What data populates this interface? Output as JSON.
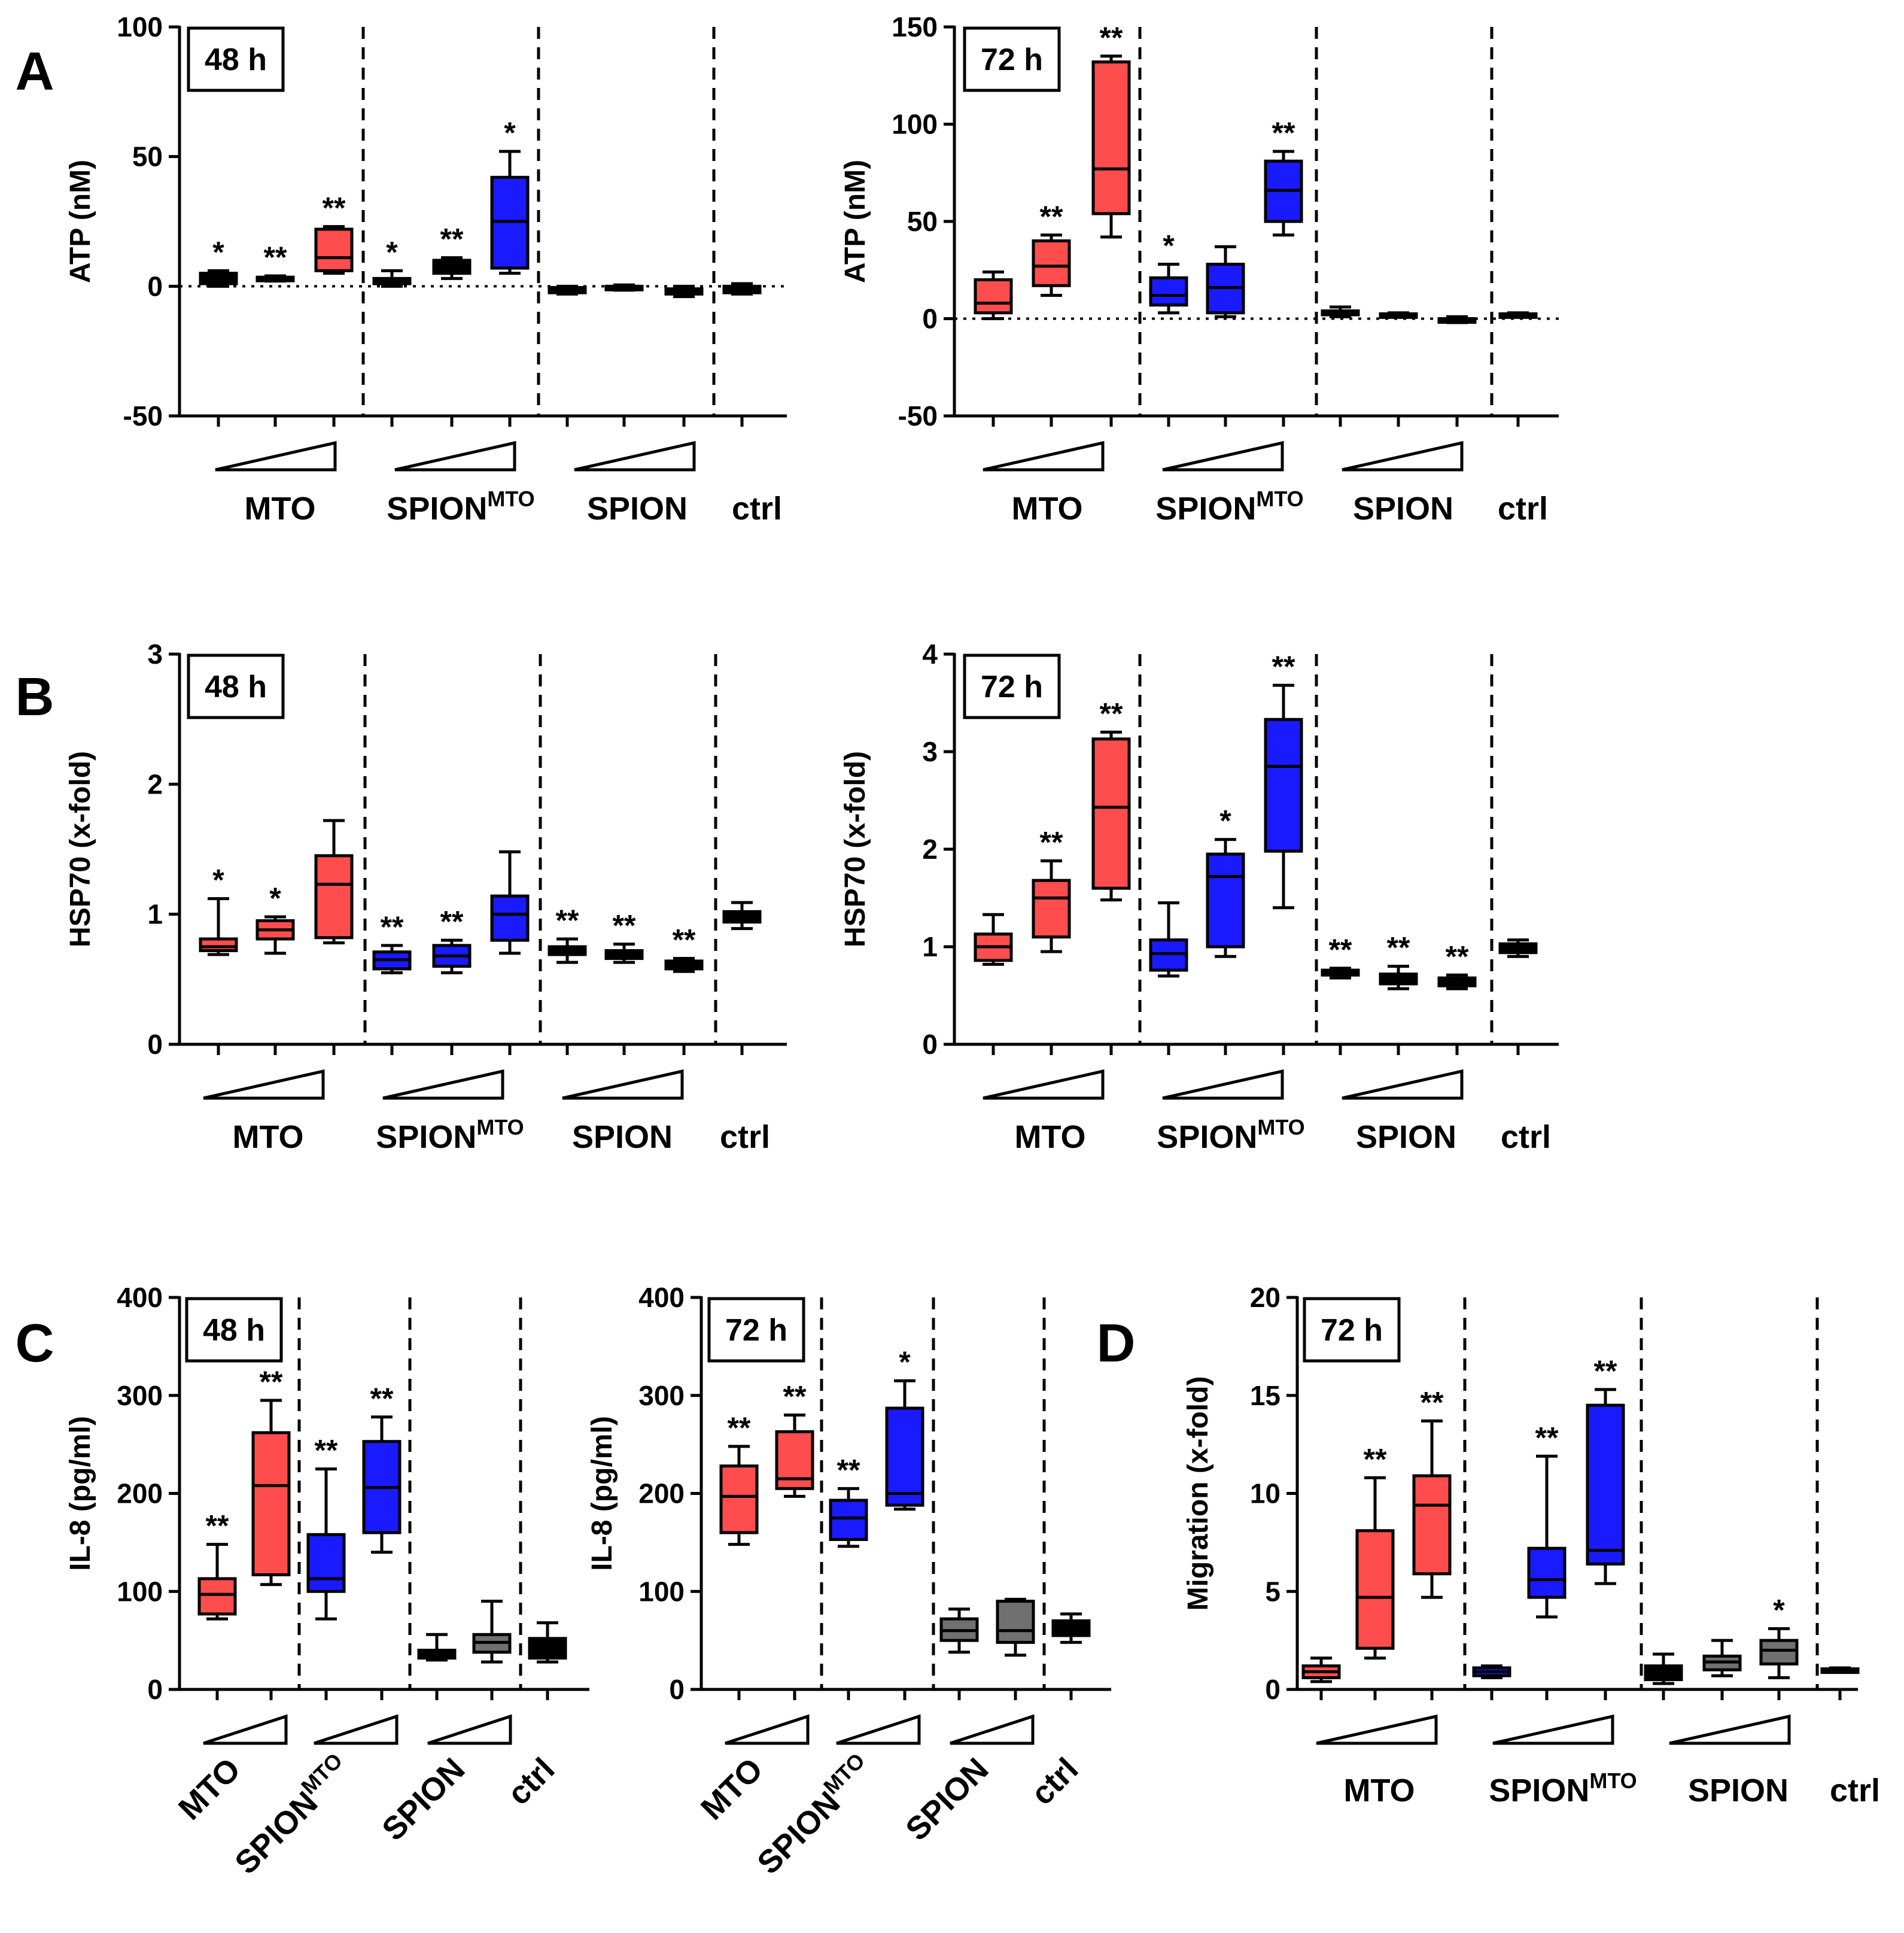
{
  "colors": {
    "MTO": "#ff4d4d",
    "SPION_MTO": "#1a1aff",
    "SPION": "#707070",
    "ctrl": "#000000",
    "black": "#000000"
  },
  "figure": {
    "panel_letters": [
      "A",
      "B",
      "C",
      "D"
    ]
  },
  "chart_data": [
    {
      "id": "A48",
      "panel": "A",
      "type": "box",
      "time_label": "48 h",
      "ylabel": "ATP (nM)",
      "ylim": [
        -50,
        100
      ],
      "yticks": [
        -50,
        0,
        50,
        100
      ],
      "zero_line": true,
      "group_labels": [
        "MTO",
        "SPION",
        "MTO",
        "SPION",
        "ctrl"
      ],
      "boxes": [
        {
          "group": "MTO",
          "color_key": "black",
          "min": 0,
          "q1": 1,
          "median": 3,
          "q3": 5,
          "max": 6,
          "sig": "*"
        },
        {
          "group": "MTO",
          "color_key": "black",
          "min": 2,
          "q1": 2.5,
          "median": 3,
          "q3": 3.5,
          "max": 4,
          "sig": "**"
        },
        {
          "group": "MTO",
          "color_key": "MTO",
          "min": 5,
          "q1": 6,
          "median": 11,
          "q3": 22,
          "max": 23,
          "sig": "**"
        },
        {
          "group": "SPION_MTO",
          "color_key": "black",
          "min": 0,
          "q1": 1,
          "median": 2,
          "q3": 3,
          "max": 6,
          "sig": "*"
        },
        {
          "group": "SPION_MTO",
          "color_key": "black",
          "min": 3,
          "q1": 5,
          "median": 7,
          "q3": 10,
          "max": 11,
          "sig": "**"
        },
        {
          "group": "SPION_MTO",
          "color_key": "SPION_MTO",
          "min": 5,
          "q1": 7,
          "median": 25,
          "q3": 42,
          "max": 52,
          "sig": "*"
        },
        {
          "group": "SPION",
          "color_key": "black",
          "min": -3,
          "q1": -2.5,
          "median": -1.5,
          "q3": -0.5,
          "max": 0,
          "sig": ""
        },
        {
          "group": "SPION",
          "color_key": "black",
          "min": -1.5,
          "q1": -1,
          "median": -0.5,
          "q3": 0,
          "max": 0.5,
          "sig": ""
        },
        {
          "group": "SPION",
          "color_key": "black",
          "min": -4,
          "q1": -3,
          "median": -2,
          "q3": -1,
          "max": 0,
          "sig": ""
        },
        {
          "group": "ctrl",
          "color_key": "black",
          "min": -3,
          "q1": -2.5,
          "median": -1,
          "q3": 0,
          "max": 1,
          "sig": ""
        }
      ]
    },
    {
      "id": "A72",
      "panel": "A",
      "type": "box",
      "time_label": "72 h",
      "ylabel": "ATP (nM)",
      "ylim": [
        -50,
        150
      ],
      "yticks": [
        -50,
        0,
        50,
        100,
        150
      ],
      "zero_line": true,
      "group_labels": [
        "MTO",
        "SPION",
        "MTO",
        "SPION",
        "ctrl"
      ],
      "boxes": [
        {
          "group": "MTO",
          "color_key": "MTO",
          "min": 0,
          "q1": 3,
          "median": 8,
          "q3": 20,
          "max": 24,
          "sig": ""
        },
        {
          "group": "MTO",
          "color_key": "MTO",
          "min": 12,
          "q1": 17,
          "median": 27,
          "q3": 40,
          "max": 43,
          "sig": "**"
        },
        {
          "group": "MTO",
          "color_key": "MTO",
          "min": 42,
          "q1": 54,
          "median": 77,
          "q3": 132,
          "max": 135,
          "sig": "**"
        },
        {
          "group": "SPION_MTO",
          "color_key": "SPION_MTO",
          "min": 3,
          "q1": 7,
          "median": 12,
          "q3": 21,
          "max": 28,
          "sig": "*"
        },
        {
          "group": "SPION_MTO",
          "color_key": "SPION_MTO",
          "min": 1,
          "q1": 3,
          "median": 16,
          "q3": 28,
          "max": 37,
          "sig": ""
        },
        {
          "group": "SPION_MTO",
          "color_key": "SPION_MTO",
          "min": 43,
          "q1": 50,
          "median": 66,
          "q3": 81,
          "max": 86,
          "sig": "**"
        },
        {
          "group": "SPION",
          "color_key": "black",
          "min": 1,
          "q1": 2,
          "median": 3,
          "q3": 4,
          "max": 6,
          "sig": ""
        },
        {
          "group": "SPION",
          "color_key": "black",
          "min": 1,
          "q1": 1.5,
          "median": 2,
          "q3": 2.5,
          "max": 3,
          "sig": ""
        },
        {
          "group": "SPION",
          "color_key": "black",
          "min": -2,
          "q1": -1.5,
          "median": -1,
          "q3": 0,
          "max": 1,
          "sig": ""
        },
        {
          "group": "ctrl",
          "color_key": "black",
          "min": 1,
          "q1": 1.5,
          "median": 2,
          "q3": 2.5,
          "max": 3,
          "sig": ""
        }
      ]
    },
    {
      "id": "B48",
      "panel": "B",
      "type": "box",
      "time_label": "48 h",
      "ylabel": "HSP70 (x-fold)",
      "ylim": [
        0,
        3
      ],
      "yticks": [
        0,
        1,
        2,
        3
      ],
      "zero_line": false,
      "group_labels": [
        "MTO",
        "SPION",
        "MTO",
        "SPION",
        "ctrl"
      ],
      "boxes": [
        {
          "group": "MTO",
          "color_key": "MTO",
          "min": 0.69,
          "q1": 0.72,
          "median": 0.75,
          "q3": 0.81,
          "max": 1.12,
          "sig": "*"
        },
        {
          "group": "MTO",
          "color_key": "MTO",
          "min": 0.7,
          "q1": 0.81,
          "median": 0.88,
          "q3": 0.95,
          "max": 0.98,
          "sig": "*"
        },
        {
          "group": "MTO",
          "color_key": "MTO",
          "min": 0.78,
          "q1": 0.82,
          "median": 1.23,
          "q3": 1.45,
          "max": 1.72,
          "sig": ""
        },
        {
          "group": "SPION_MTO",
          "color_key": "SPION_MTO",
          "min": 0.55,
          "q1": 0.58,
          "median": 0.65,
          "q3": 0.71,
          "max": 0.76,
          "sig": "**"
        },
        {
          "group": "SPION_MTO",
          "color_key": "SPION_MTO",
          "min": 0.55,
          "q1": 0.6,
          "median": 0.68,
          "q3": 0.76,
          "max": 0.8,
          "sig": "**"
        },
        {
          "group": "SPION_MTO",
          "color_key": "SPION_MTO",
          "min": 0.7,
          "q1": 0.8,
          "median": 1.0,
          "q3": 1.14,
          "max": 1.48,
          "sig": ""
        },
        {
          "group": "SPION",
          "color_key": "black",
          "min": 0.63,
          "q1": 0.69,
          "median": 0.72,
          "q3": 0.75,
          "max": 0.81,
          "sig": "**"
        },
        {
          "group": "SPION",
          "color_key": "black",
          "min": 0.63,
          "q1": 0.66,
          "median": 0.69,
          "q3": 0.72,
          "max": 0.77,
          "sig": "**"
        },
        {
          "group": "SPION",
          "color_key": "black",
          "min": 0.56,
          "q1": 0.58,
          "median": 0.61,
          "q3": 0.64,
          "max": 0.66,
          "sig": "**"
        },
        {
          "group": "ctrl",
          "color_key": "black",
          "min": 0.89,
          "q1": 0.94,
          "median": 0.98,
          "q3": 1.02,
          "max": 1.09,
          "sig": ""
        }
      ]
    },
    {
      "id": "B72",
      "panel": "B",
      "type": "box",
      "time_label": "72 h",
      "ylabel": "HSP70 (x-fold)",
      "ylim": [
        0,
        4
      ],
      "yticks": [
        0,
        1,
        2,
        3,
        4
      ],
      "zero_line": false,
      "group_labels": [
        "MTO",
        "SPION",
        "MTO",
        "SPION",
        "ctrl"
      ],
      "boxes": [
        {
          "group": "MTO",
          "color_key": "MTO",
          "min": 0.82,
          "q1": 0.86,
          "median": 1.0,
          "q3": 1.13,
          "max": 1.33,
          "sig": ""
        },
        {
          "group": "MTO",
          "color_key": "MTO",
          "min": 0.95,
          "q1": 1.1,
          "median": 1.5,
          "q3": 1.68,
          "max": 1.88,
          "sig": "**"
        },
        {
          "group": "MTO",
          "color_key": "MTO",
          "min": 1.48,
          "q1": 1.6,
          "median": 2.43,
          "q3": 3.13,
          "max": 3.2,
          "sig": "**"
        },
        {
          "group": "SPION_MTO",
          "color_key": "SPION_MTO",
          "min": 0.7,
          "q1": 0.76,
          "median": 0.93,
          "q3": 1.07,
          "max": 1.45,
          "sig": ""
        },
        {
          "group": "SPION_MTO",
          "color_key": "SPION_MTO",
          "min": 0.9,
          "q1": 1.0,
          "median": 1.72,
          "q3": 1.95,
          "max": 2.1,
          "sig": "*"
        },
        {
          "group": "SPION_MTO",
          "color_key": "SPION_MTO",
          "min": 1.4,
          "q1": 1.98,
          "median": 2.85,
          "q3": 3.33,
          "max": 3.68,
          "sig": "**"
        },
        {
          "group": "SPION",
          "color_key": "black",
          "min": 0.68,
          "q1": 0.71,
          "median": 0.73,
          "q3": 0.76,
          "max": 0.78,
          "sig": "**"
        },
        {
          "group": "SPION",
          "color_key": "black",
          "min": 0.57,
          "q1": 0.62,
          "median": 0.67,
          "q3": 0.72,
          "max": 0.8,
          "sig": "**"
        },
        {
          "group": "SPION",
          "color_key": "black",
          "min": 0.57,
          "q1": 0.6,
          "median": 0.64,
          "q3": 0.68,
          "max": 0.71,
          "sig": "**"
        },
        {
          "group": "ctrl",
          "color_key": "black",
          "min": 0.9,
          "q1": 0.94,
          "median": 0.99,
          "q3": 1.03,
          "max": 1.07,
          "sig": ""
        }
      ]
    },
    {
      "id": "C48",
      "panel": "C",
      "type": "box",
      "time_label": "48 h",
      "ylabel": "IL-8 (pg/ml)",
      "ylim": [
        0,
        400
      ],
      "yticks": [
        0,
        100,
        200,
        300,
        400
      ],
      "zero_line": false,
      "group_labels": [
        "MTO",
        "SPION",
        "MTO",
        "SPION",
        "ctrl"
      ],
      "boxes": [
        {
          "group": "MTO",
          "color_key": "MTO",
          "min": 72,
          "q1": 77,
          "median": 97,
          "q3": 113,
          "max": 148,
          "sig": "**"
        },
        {
          "group": "MTO",
          "color_key": "MTO",
          "min": 107,
          "q1": 117,
          "median": 208,
          "q3": 262,
          "max": 295,
          "sig": "**"
        },
        {
          "group": "SPION_MTO",
          "color_key": "SPION_MTO",
          "min": 72,
          "q1": 100,
          "median": 113,
          "q3": 158,
          "max": 225,
          "sig": "**"
        },
        {
          "group": "SPION_MTO",
          "color_key": "SPION_MTO",
          "min": 140,
          "q1": 160,
          "median": 206,
          "q3": 253,
          "max": 278,
          "sig": "**"
        },
        {
          "group": "SPION",
          "color_key": "black",
          "min": 30,
          "q1": 32,
          "median": 36,
          "q3": 40,
          "max": 56,
          "sig": ""
        },
        {
          "group": "SPION",
          "color_key": "SPION",
          "min": 28,
          "q1": 38,
          "median": 48,
          "q3": 56,
          "max": 90,
          "sig": ""
        },
        {
          "group": "ctrl",
          "color_key": "black",
          "min": 28,
          "q1": 32,
          "median": 42,
          "q3": 52,
          "max": 68,
          "sig": ""
        }
      ]
    },
    {
      "id": "C72",
      "panel": "C",
      "type": "box",
      "time_label": "72 h",
      "ylabel": "IL-8 (pg/ml)",
      "ylim": [
        0,
        400
      ],
      "yticks": [
        0,
        100,
        200,
        300,
        400
      ],
      "zero_line": false,
      "group_labels": [
        "MTO",
        "SPION",
        "MTO",
        "SPION",
        "ctrl"
      ],
      "boxes": [
        {
          "group": "MTO",
          "color_key": "MTO",
          "min": 148,
          "q1": 160,
          "median": 197,
          "q3": 228,
          "max": 248,
          "sig": "**"
        },
        {
          "group": "MTO",
          "color_key": "MTO",
          "min": 197,
          "q1": 205,
          "median": 215,
          "q3": 263,
          "max": 280,
          "sig": "**"
        },
        {
          "group": "SPION_MTO",
          "color_key": "SPION_MTO",
          "min": 146,
          "q1": 153,
          "median": 175,
          "q3": 193,
          "max": 205,
          "sig": "**"
        },
        {
          "group": "SPION_MTO",
          "color_key": "SPION_MTO",
          "min": 184,
          "q1": 188,
          "median": 200,
          "q3": 287,
          "max": 315,
          "sig": "*"
        },
        {
          "group": "SPION",
          "color_key": "SPION",
          "min": 38,
          "q1": 50,
          "median": 60,
          "q3": 72,
          "max": 82,
          "sig": ""
        },
        {
          "group": "SPION",
          "color_key": "SPION",
          "min": 35,
          "q1": 48,
          "median": 60,
          "q3": 90,
          "max": 92,
          "sig": ""
        },
        {
          "group": "ctrl",
          "color_key": "black",
          "min": 48,
          "q1": 55,
          "median": 62,
          "q3": 70,
          "max": 77,
          "sig": ""
        }
      ]
    },
    {
      "id": "D72",
      "panel": "D",
      "type": "box",
      "time_label": "72 h",
      "ylabel": "Migration (x-fold)",
      "ylim": [
        0,
        20
      ],
      "yticks": [
        0,
        5,
        10,
        15,
        20
      ],
      "zero_line": false,
      "group_labels": [
        "MTO",
        "SPION",
        "MTO",
        "SPION",
        "ctrl"
      ],
      "boxes": [
        {
          "group": "MTO",
          "color_key": "MTO",
          "min": 0.4,
          "q1": 0.6,
          "median": 0.9,
          "q3": 1.2,
          "max": 1.6,
          "sig": ""
        },
        {
          "group": "MTO",
          "color_key": "MTO",
          "min": 1.6,
          "q1": 2.1,
          "median": 4.7,
          "q3": 8.1,
          "max": 10.8,
          "sig": "**"
        },
        {
          "group": "MTO",
          "color_key": "MTO",
          "min": 4.7,
          "q1": 5.9,
          "median": 9.4,
          "q3": 10.9,
          "max": 13.7,
          "sig": "**"
        },
        {
          "group": "SPION_MTO",
          "color_key": "SPION_MTO",
          "min": 0.6,
          "q1": 0.7,
          "median": 0.9,
          "q3": 1.1,
          "max": 1.2,
          "sig": ""
        },
        {
          "group": "SPION_MTO",
          "color_key": "SPION_MTO",
          "min": 3.7,
          "q1": 4.7,
          "median": 5.6,
          "q3": 7.2,
          "max": 11.9,
          "sig": "**"
        },
        {
          "group": "SPION_MTO",
          "color_key": "SPION_MTO",
          "min": 5.4,
          "q1": 6.4,
          "median": 7.1,
          "q3": 14.5,
          "max": 15.3,
          "sig": "**"
        },
        {
          "group": "SPION",
          "color_key": "black",
          "min": 0.3,
          "q1": 0.5,
          "median": 0.8,
          "q3": 1.2,
          "max": 1.8,
          "sig": ""
        },
        {
          "group": "SPION",
          "color_key": "SPION",
          "min": 0.7,
          "q1": 1.0,
          "median": 1.4,
          "q3": 1.7,
          "max": 2.5,
          "sig": ""
        },
        {
          "group": "SPION",
          "color_key": "SPION",
          "min": 0.6,
          "q1": 1.3,
          "median": 2.0,
          "q3": 2.5,
          "max": 3.1,
          "sig": "*"
        },
        {
          "group": "ctrl",
          "color_key": "black",
          "min": 0.9,
          "q1": 0.95,
          "median": 1.0,
          "q3": 1.05,
          "max": 1.1,
          "sig": ""
        }
      ]
    }
  ]
}
